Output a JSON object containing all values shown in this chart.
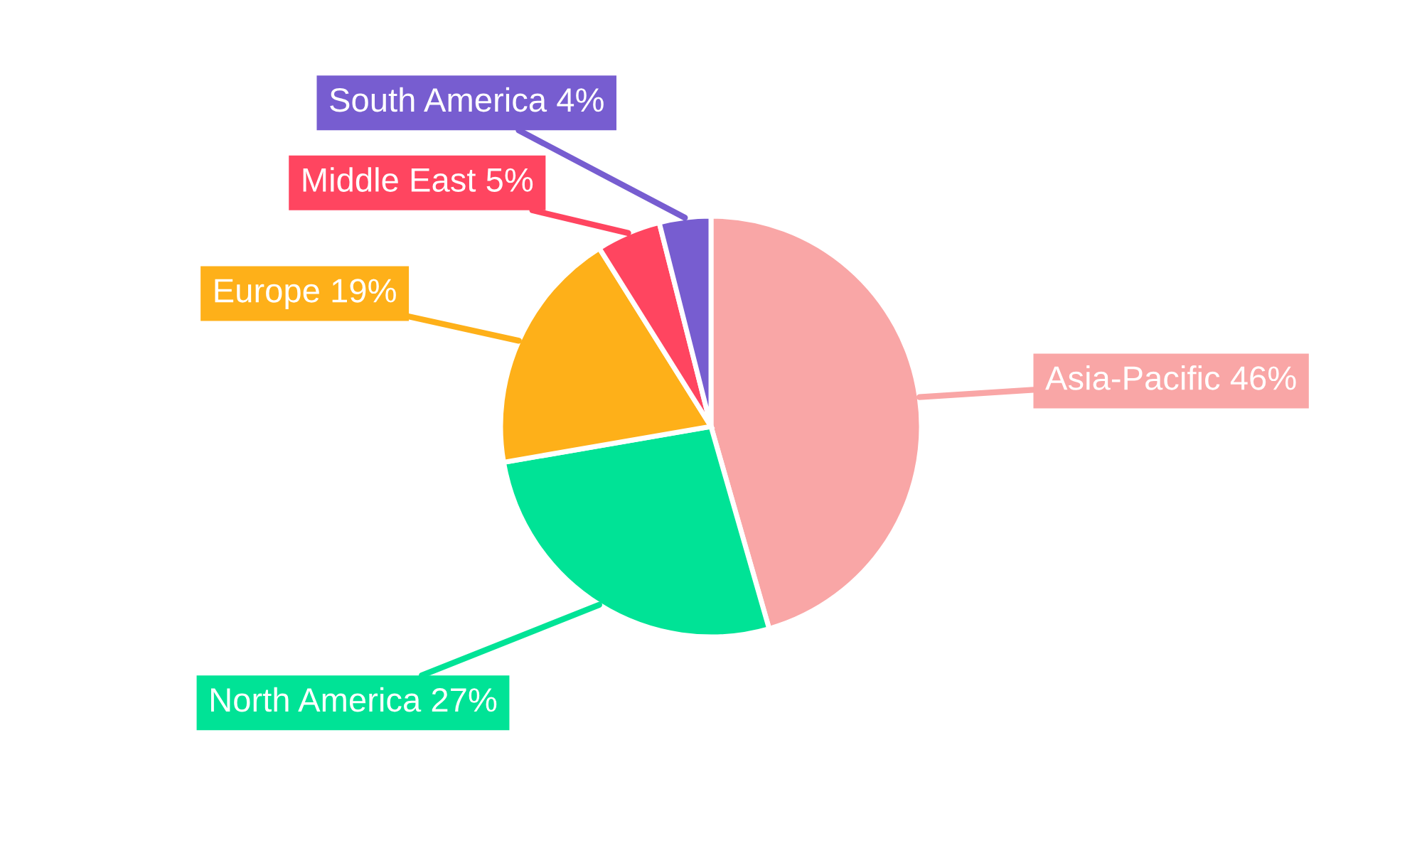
{
  "chart_data": {
    "type": "pie",
    "categories": [
      "Asia-Pacific",
      "North America",
      "Europe",
      "Middle East",
      "South America"
    ],
    "values": [
      46,
      27,
      19,
      5,
      4
    ],
    "value_labels": [
      "46%",
      "27%",
      "19%",
      "5%",
      "4%"
    ],
    "colors": [
      "#f9a6a6",
      "#00e396",
      "#feb019",
      "#ff4560",
      "#775dd0"
    ],
    "legend": false
  }
}
